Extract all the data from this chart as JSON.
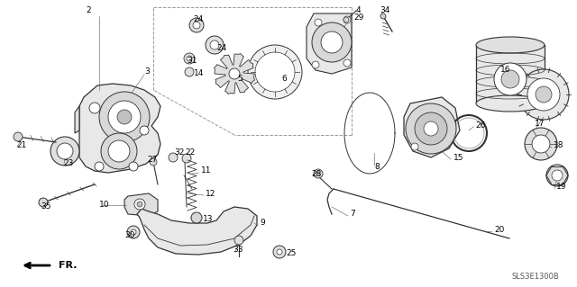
{
  "background_color": "#ffffff",
  "diagram_code": "SLS3E1300B",
  "fr_label": "FR.",
  "line_color": "#333333",
  "light_gray": "#cccccc",
  "mid_gray": "#888888"
}
